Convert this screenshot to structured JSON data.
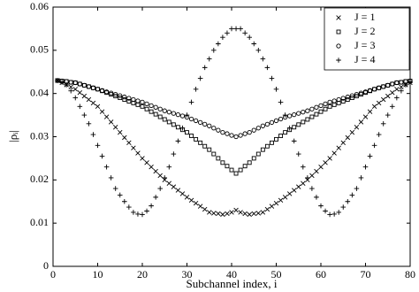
{
  "chart_data": {
    "type": "scatter",
    "xlabel": "Subchannel index, i",
    "ylabel": "|ρᵢ|",
    "x": [
      1,
      2,
      3,
      4,
      5,
      6,
      7,
      8,
      9,
      10,
      11,
      12,
      13,
      14,
      15,
      16,
      17,
      18,
      19,
      20,
      21,
      22,
      23,
      24,
      25,
      26,
      27,
      28,
      29,
      30,
      31,
      32,
      33,
      34,
      35,
      36,
      37,
      38,
      39,
      40,
      41,
      42,
      43,
      44,
      45,
      46,
      47,
      48,
      49,
      50,
      51,
      52,
      53,
      54,
      55,
      56,
      57,
      58,
      59,
      60,
      61,
      62,
      63,
      64,
      65,
      66,
      67,
      68,
      69,
      70,
      71,
      72,
      73,
      74,
      75,
      76,
      77,
      78,
      79,
      80
    ],
    "xlim": [
      0,
      80
    ],
    "xticks": [
      0,
      10,
      20,
      30,
      40,
      50,
      60,
      70,
      80
    ],
    "ylim": [
      0,
      0.06
    ],
    "yticks": [
      0,
      0.01,
      0.02,
      0.03,
      0.04,
      0.05,
      0.06
    ],
    "legend": "upper-right",
    "series": [
      {
        "name": "J = 1",
        "marker": "x",
        "color": "#000000",
        "values": [
          0.043,
          0.0425,
          0.042,
          0.0415,
          0.041,
          0.0402,
          0.0394,
          0.0386,
          0.0378,
          0.037,
          0.0358,
          0.0346,
          0.0334,
          0.0322,
          0.031,
          0.0298,
          0.0286,
          0.0274,
          0.0262,
          0.025,
          0.024,
          0.023,
          0.022,
          0.021,
          0.02,
          0.0192,
          0.0184,
          0.0176,
          0.0168,
          0.016,
          0.0153,
          0.0146,
          0.0139,
          0.0132,
          0.0125,
          0.0123,
          0.0122,
          0.012,
          0.0122,
          0.0125,
          0.013,
          0.0125,
          0.0122,
          0.012,
          0.0122,
          0.0123,
          0.0125,
          0.0132,
          0.0139,
          0.0146,
          0.0153,
          0.016,
          0.0168,
          0.0176,
          0.0184,
          0.0192,
          0.02,
          0.021,
          0.022,
          0.023,
          0.024,
          0.025,
          0.0262,
          0.0274,
          0.0286,
          0.0298,
          0.031,
          0.0322,
          0.0334,
          0.0346,
          0.0358,
          0.037,
          0.0378,
          0.0386,
          0.0394,
          0.0402,
          0.041,
          0.0415,
          0.042,
          0.0425
        ]
      },
      {
        "name": "J = 2",
        "marker": "square",
        "color": "#000000",
        "values": [
          0.043,
          0.0429,
          0.0428,
          0.0426,
          0.0425,
          0.0422,
          0.0419,
          0.0416,
          0.0413,
          0.041,
          0.0406,
          0.0402,
          0.0398,
          0.0394,
          0.039,
          0.0386,
          0.0382,
          0.0378,
          0.0374,
          0.037,
          0.0364,
          0.0358,
          0.0352,
          0.0346,
          0.034,
          0.0334,
          0.0328,
          0.0322,
          0.0316,
          0.031,
          0.0302,
          0.0294,
          0.0286,
          0.0278,
          0.027,
          0.026,
          0.025,
          0.024,
          0.0232,
          0.0223,
          0.0215,
          0.0223,
          0.0232,
          0.024,
          0.025,
          0.026,
          0.027,
          0.0278,
          0.0286,
          0.0294,
          0.0302,
          0.031,
          0.0316,
          0.0322,
          0.0328,
          0.0334,
          0.034,
          0.0346,
          0.0352,
          0.0358,
          0.0364,
          0.037,
          0.0374,
          0.0378,
          0.0382,
          0.0386,
          0.039,
          0.0394,
          0.0398,
          0.0402,
          0.0406,
          0.041,
          0.0413,
          0.0416,
          0.0419,
          0.0422,
          0.0425,
          0.0426,
          0.0428,
          0.0429
        ]
      },
      {
        "name": "J = 3",
        "marker": "circle",
        "color": "#000000",
        "values": [
          0.043,
          0.0429,
          0.0428,
          0.0426,
          0.0425,
          0.0422,
          0.0419,
          0.0416,
          0.0413,
          0.041,
          0.0407,
          0.0404,
          0.0401,
          0.0398,
          0.0395,
          0.0392,
          0.0389,
          0.0386,
          0.0383,
          0.038,
          0.0376,
          0.0372,
          0.0368,
          0.0364,
          0.036,
          0.0357,
          0.0354,
          0.0351,
          0.0348,
          0.0345,
          0.0341,
          0.0337,
          0.0333,
          0.0329,
          0.0325,
          0.032,
          0.0315,
          0.031,
          0.0307,
          0.0303,
          0.03,
          0.0303,
          0.0307,
          0.031,
          0.0315,
          0.032,
          0.0325,
          0.0329,
          0.0333,
          0.0337,
          0.0341,
          0.0345,
          0.0348,
          0.0351,
          0.0354,
          0.0357,
          0.036,
          0.0364,
          0.0368,
          0.0372,
          0.0376,
          0.038,
          0.0383,
          0.0386,
          0.0389,
          0.0392,
          0.0395,
          0.0398,
          0.0401,
          0.0404,
          0.0407,
          0.041,
          0.0413,
          0.0416,
          0.0419,
          0.0422,
          0.0425,
          0.0426,
          0.0428,
          0.0429
        ]
      },
      {
        "name": "J = 4",
        "marker": "plus",
        "color": "#000000",
        "values": [
          0.043,
          0.0426,
          0.042,
          0.0406,
          0.039,
          0.037,
          0.035,
          0.033,
          0.0305,
          0.028,
          0.0255,
          0.023,
          0.0205,
          0.018,
          0.0165,
          0.015,
          0.0137,
          0.0125,
          0.0121,
          0.012,
          0.0128,
          0.014,
          0.016,
          0.018,
          0.0205,
          0.023,
          0.026,
          0.029,
          0.032,
          0.035,
          0.038,
          0.041,
          0.0435,
          0.046,
          0.048,
          0.05,
          0.0515,
          0.053,
          0.054,
          0.055,
          0.055,
          0.055,
          0.054,
          0.053,
          0.0515,
          0.05,
          0.048,
          0.046,
          0.0435,
          0.041,
          0.038,
          0.035,
          0.032,
          0.029,
          0.026,
          0.023,
          0.0205,
          0.018,
          0.016,
          0.014,
          0.0128,
          0.012,
          0.0121,
          0.0125,
          0.0137,
          0.015,
          0.0165,
          0.018,
          0.0205,
          0.023,
          0.0255,
          0.028,
          0.0305,
          0.033,
          0.035,
          0.037,
          0.039,
          0.0406,
          0.042,
          0.0426
        ]
      }
    ]
  }
}
